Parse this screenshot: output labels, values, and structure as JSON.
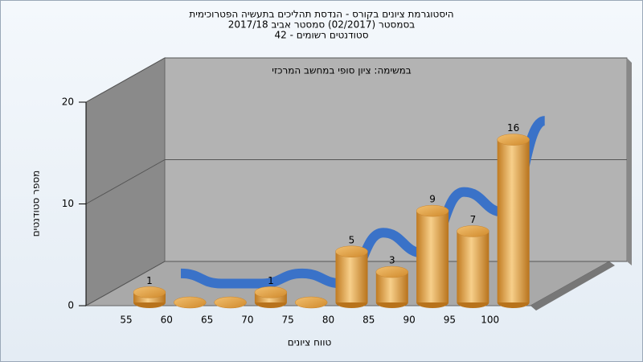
{
  "chart_data": {
    "type": "bar3d",
    "title": [
      "היסטוגרמת ציונים בקורס - הנדסת תהליכים בתעשיה הפטרוכימית",
      "בסמסטר  (02/2017)  סמסטר אביב 2017/18",
      "סטודנטים רשומים - 42"
    ],
    "annotation": "במשימה: ציון סופי במחשב המרכזי",
    "x_label": "טווח ציונים",
    "y_label": "מספר סטודנטים",
    "categories": [
      "55",
      "60",
      "65",
      "70",
      "75",
      "80",
      "85",
      "90",
      "95",
      "100"
    ],
    "values": [
      1,
      0,
      0,
      1,
      0,
      5,
      3,
      9,
      7,
      16
    ],
    "color": "#e8a84a",
    "trend_color": "#3a72c8",
    "ylim": [
      0,
      20
    ],
    "yticks": [
      0,
      10,
      20
    ],
    "grid": true
  }
}
